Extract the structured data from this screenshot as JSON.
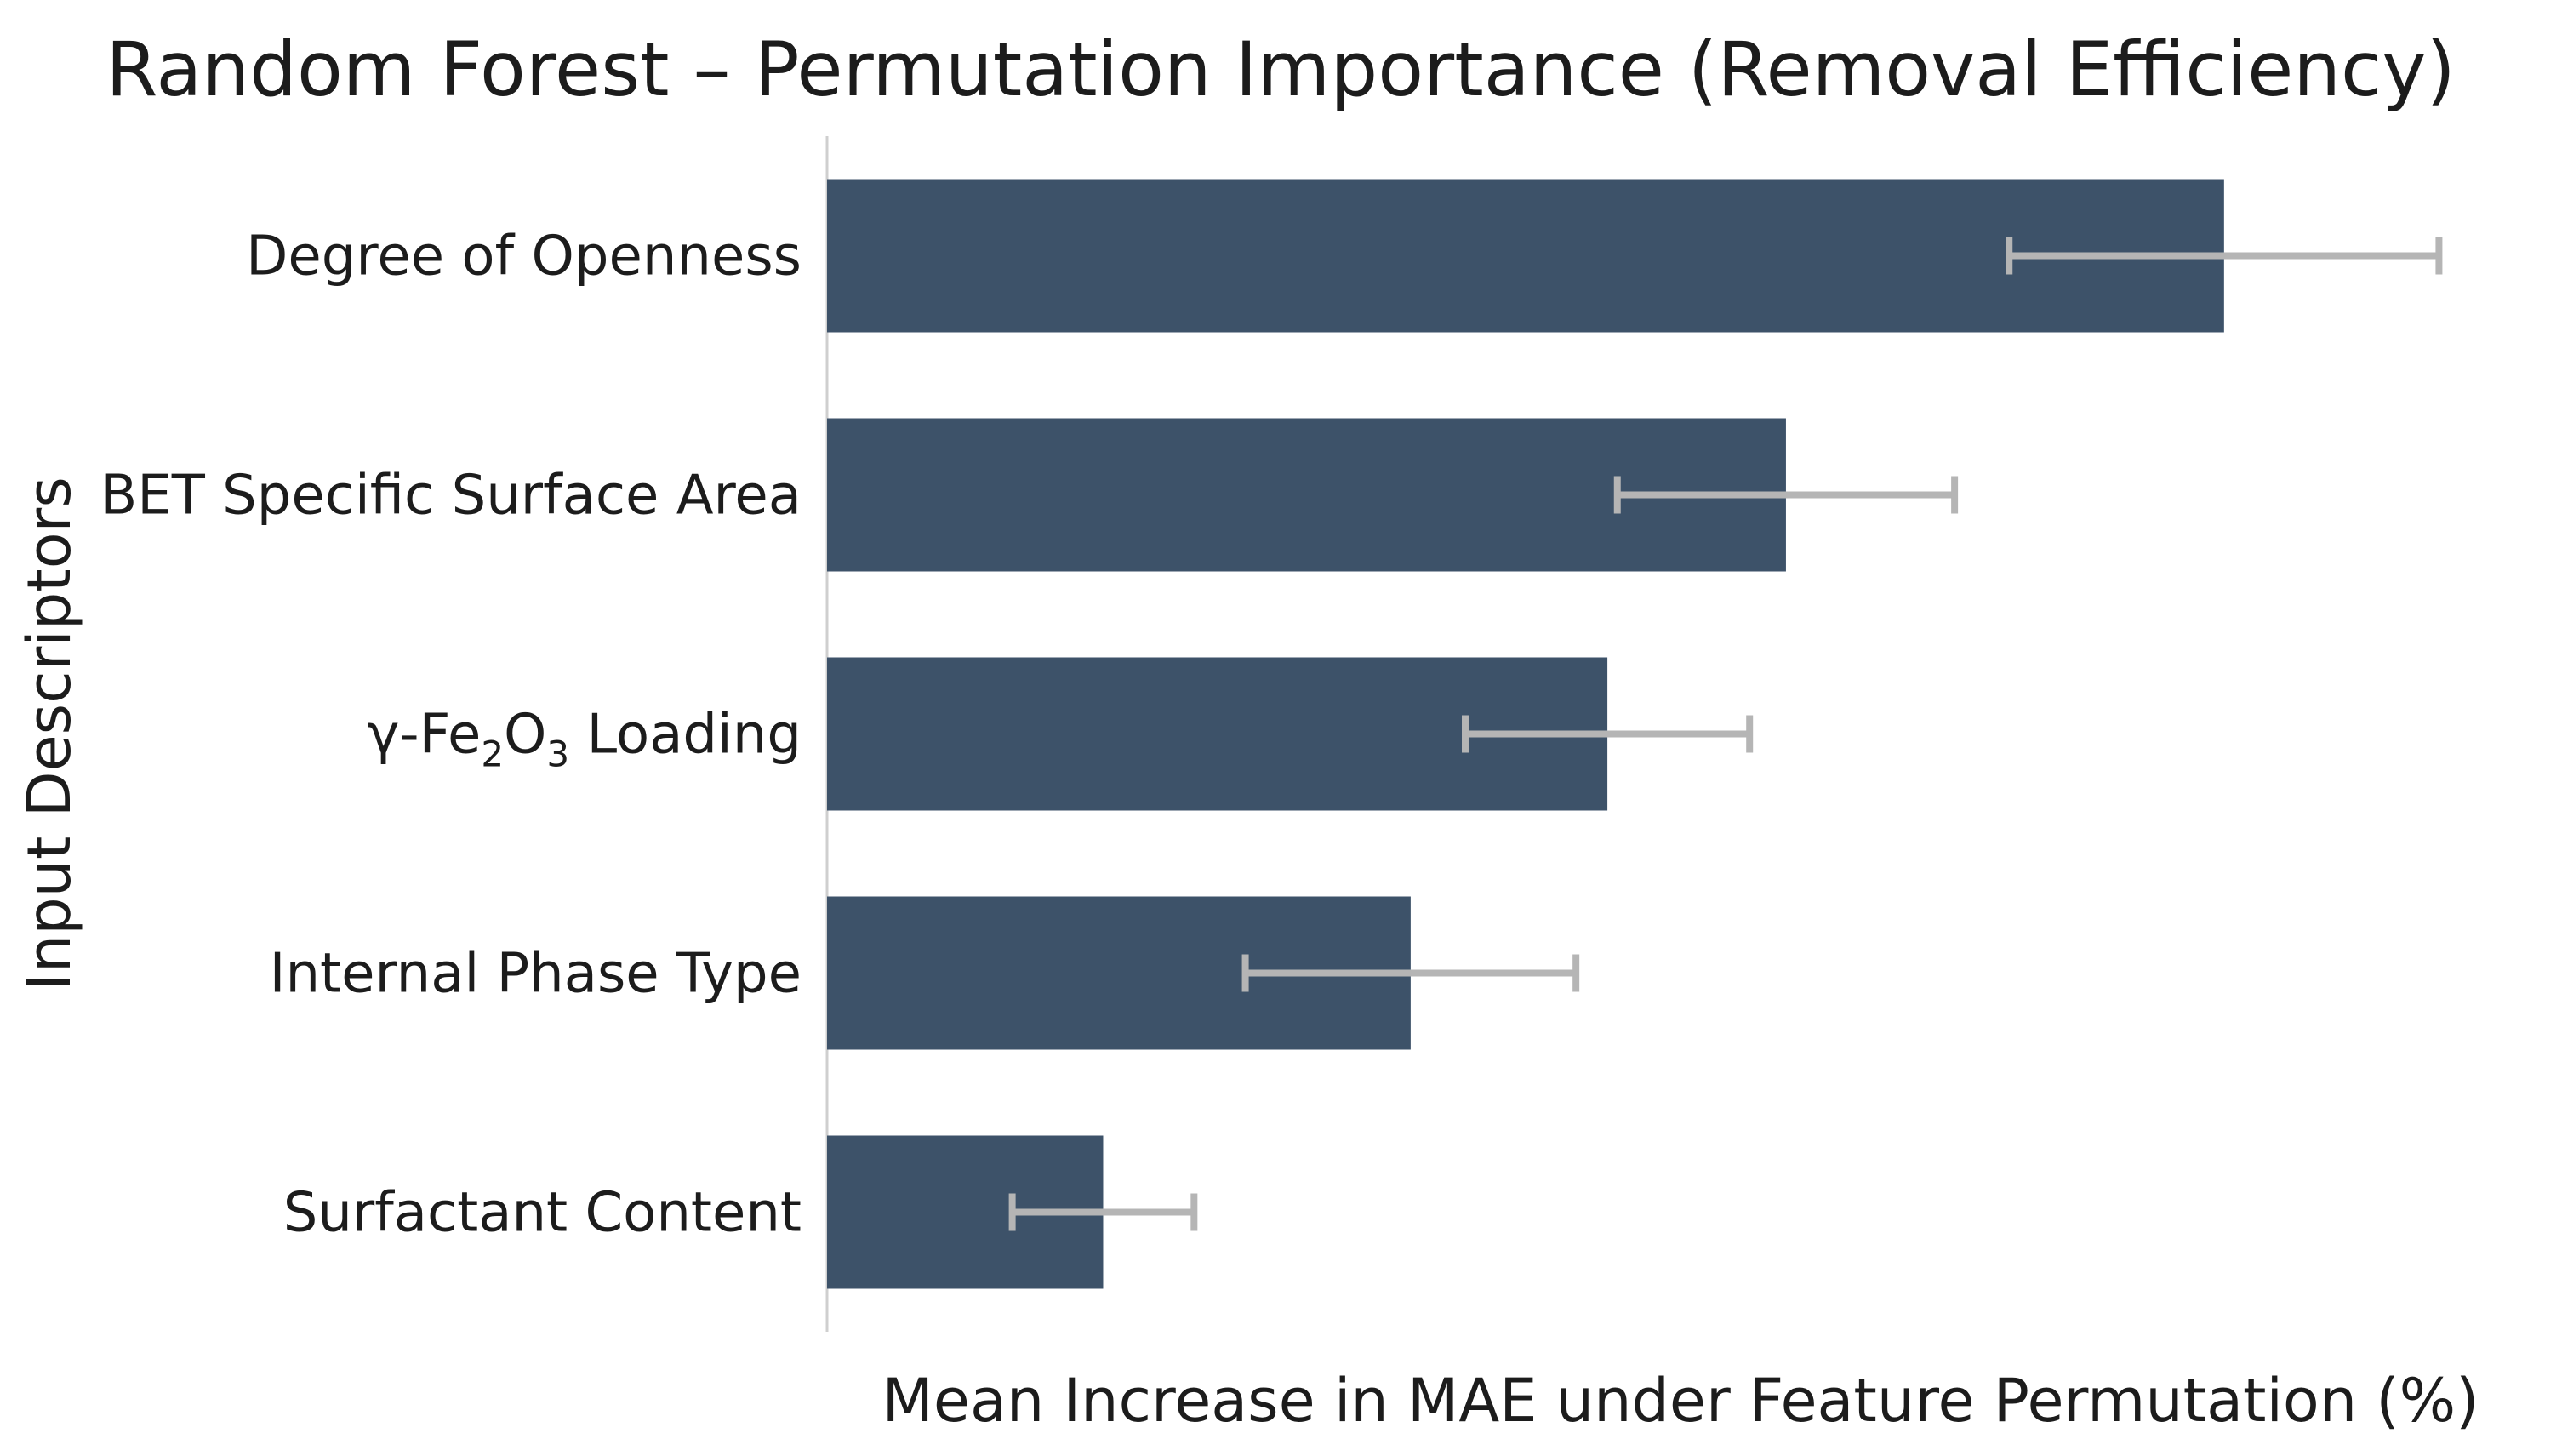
{
  "chart_data": {
    "type": "bar",
    "orientation": "horizontal",
    "title": "Random Forest  – Permutation Importance (Removal Efficiency)",
    "xlabel": "Mean Increase in MAE under Feature Permutation (%)",
    "ylabel": "Input Descriptors",
    "categories": [
      "Degree of Openness",
      "BET Specific Surface Area",
      "γ-Fe2O3 Loading",
      "Internal Phase Type",
      "Surfactant Content"
    ],
    "category_rich": [
      [
        {
          "t": "Degree of Openness"
        }
      ],
      [
        {
          "t": "BET Specific Surface Area"
        }
      ],
      [
        {
          "t": "γ-Fe"
        },
        {
          "t": "2",
          "sub": true
        },
        {
          "t": "O"
        },
        {
          "t": "3",
          "sub": true
        },
        {
          "t": " Loading"
        }
      ],
      [
        {
          "t": "Internal Phase Type"
        }
      ],
      [
        {
          "t": "Surfactant Content"
        }
      ]
    ],
    "values": [
      0.845,
      0.58,
      0.472,
      0.353,
      0.167
    ],
    "errors": [
      0.13,
      0.102,
      0.086,
      0.1,
      0.055
    ],
    "xlim": [
      0,
      1
    ],
    "ticks_shown": false,
    "grid": false,
    "legend": "none",
    "bar_color": "#3d5269",
    "error_color": "#b5b5b5",
    "axis_color": "#cfcfcf"
  }
}
